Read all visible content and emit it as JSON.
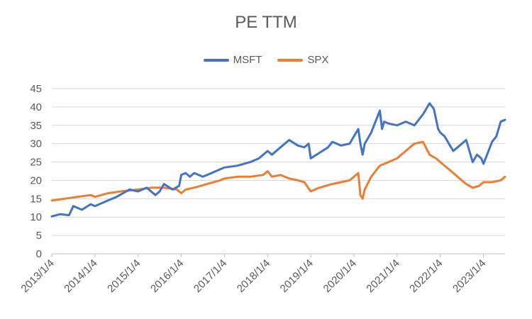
{
  "chart_data": {
    "type": "line",
    "title": "PE TTM",
    "xlabel": "",
    "ylabel": "",
    "ylim": [
      0,
      45
    ],
    "yticks": [
      0,
      5,
      10,
      15,
      20,
      25,
      30,
      35,
      40,
      45
    ],
    "xticks": [
      "2013/1/4",
      "2014/1/4",
      "2015/1/4",
      "2016/1/4",
      "2017/1/4",
      "2018/1/4",
      "2019/1/4",
      "2020/1/4",
      "2021/1/4",
      "2022/1/4",
      "2023/1/4"
    ],
    "xlim": [
      2013.0,
      2023.5
    ],
    "grid": "horizontal",
    "legend": "top-center",
    "series": [
      {
        "name": "MSFT",
        "color": "#4472C4",
        "x": [
          2013.0,
          2013.2,
          2013.4,
          2013.5,
          2013.7,
          2013.9,
          2014.0,
          2014.3,
          2014.5,
          2014.8,
          2015.0,
          2015.2,
          2015.4,
          2015.5,
          2015.6,
          2015.8,
          2015.95,
          2016.0,
          2016.1,
          2016.2,
          2016.3,
          2016.5,
          2016.7,
          2016.9,
          2017.0,
          2017.3,
          2017.6,
          2017.8,
          2018.0,
          2018.1,
          2018.3,
          2018.5,
          2018.7,
          2018.85,
          2018.95,
          2019.0,
          2019.2,
          2019.4,
          2019.5,
          2019.7,
          2019.9,
          2020.0,
          2020.1,
          2020.15,
          2020.2,
          2020.25,
          2020.4,
          2020.6,
          2020.65,
          2020.7,
          2020.8,
          2021.0,
          2021.2,
          2021.4,
          2021.6,
          2021.75,
          2021.85,
          2021.95,
          2022.0,
          2022.1,
          2022.2,
          2022.3,
          2022.5,
          2022.6,
          2022.75,
          2022.85,
          2022.95,
          2023.0,
          2023.1,
          2023.2,
          2023.3,
          2023.4,
          2023.5
        ],
        "values": [
          10.2,
          10.8,
          10.5,
          13.0,
          12.0,
          13.5,
          13.0,
          14.5,
          15.5,
          17.5,
          17.0,
          18.0,
          16.0,
          17.0,
          19.0,
          17.5,
          18.5,
          21.5,
          22.0,
          21.0,
          22.0,
          21.0,
          22.0,
          23.0,
          23.5,
          24.0,
          25.0,
          26.0,
          28.0,
          27.0,
          29.0,
          31.0,
          29.5,
          29.0,
          30.0,
          26.0,
          27.5,
          29.0,
          30.5,
          29.5,
          30.0,
          32.0,
          34.0,
          30.0,
          27.0,
          30.0,
          33.0,
          39.0,
          34.0,
          36.0,
          35.5,
          35.0,
          36.0,
          35.0,
          38.0,
          41.0,
          39.5,
          34.0,
          33.0,
          32.0,
          30.0,
          28.0,
          30.0,
          31.0,
          25.0,
          27.0,
          26.0,
          24.5,
          27.5,
          30.5,
          32.0,
          36.0,
          36.5
        ]
      },
      {
        "name": "SPX",
        "color": "#ED7D31",
        "x": [
          2013.0,
          2013.3,
          2013.6,
          2013.9,
          2014.0,
          2014.3,
          2014.6,
          2015.0,
          2015.3,
          2015.6,
          2015.9,
          2016.0,
          2016.1,
          2016.3,
          2016.6,
          2016.9,
          2017.0,
          2017.3,
          2017.6,
          2017.9,
          2018.0,
          2018.1,
          2018.3,
          2018.5,
          2018.7,
          2018.85,
          2019.0,
          2019.2,
          2019.5,
          2019.7,
          2019.9,
          2020.0,
          2020.1,
          2020.15,
          2020.2,
          2020.25,
          2020.4,
          2020.6,
          2020.8,
          2021.0,
          2021.2,
          2021.4,
          2021.6,
          2021.75,
          2021.9,
          2022.0,
          2022.2,
          2022.4,
          2022.6,
          2022.75,
          2022.9,
          2023.0,
          2023.2,
          2023.4,
          2023.5
        ],
        "values": [
          14.5,
          15.0,
          15.5,
          16.0,
          15.5,
          16.5,
          17.0,
          17.5,
          18.0,
          18.0,
          17.5,
          16.5,
          17.5,
          18.0,
          19.0,
          20.0,
          20.5,
          21.0,
          21.0,
          21.5,
          22.5,
          21.0,
          21.5,
          20.5,
          20.0,
          19.5,
          17.0,
          18.0,
          19.0,
          19.5,
          20.0,
          21.0,
          22.0,
          16.0,
          15.0,
          17.5,
          21.0,
          24.0,
          25.0,
          26.0,
          28.0,
          30.0,
          30.5,
          27.0,
          26.0,
          25.0,
          23.0,
          21.0,
          19.0,
          18.0,
          18.5,
          19.5,
          19.5,
          20.0,
          21.0
        ]
      }
    ]
  }
}
